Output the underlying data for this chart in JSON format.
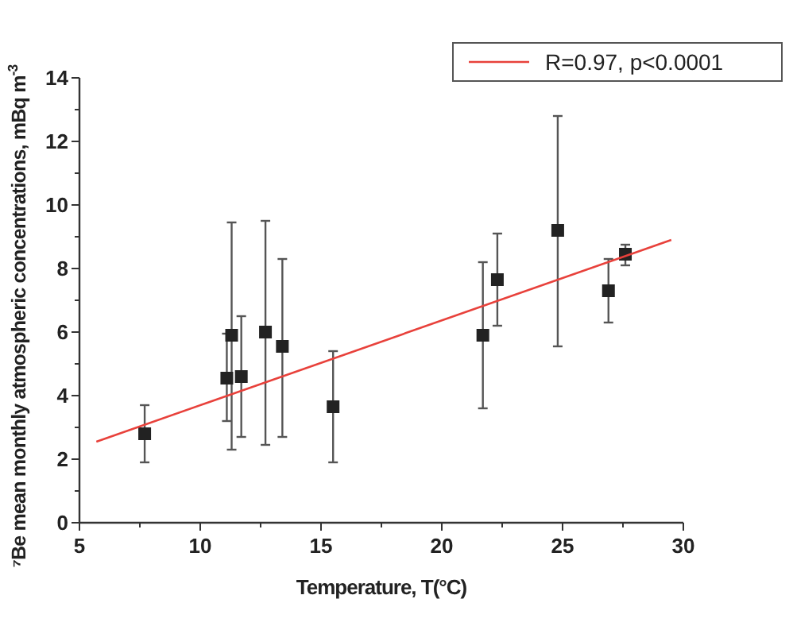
{
  "chart_data": {
    "type": "scatter",
    "xlabel": "Temperature, T(°C)",
    "ylabel": "⁷Be mean monthly atmospheric concentrations, mBq m$^{-3}$",
    "xlim": [
      5,
      30
    ],
    "ylim": [
      0,
      14
    ],
    "xticks": [
      5,
      {
        "value": 7.5,
        "label": null
      },
      10,
      {
        "value": 12.5,
        "label": null
      },
      15,
      {
        "value": 17.5,
        "label": null
      },
      20,
      {
        "value": 22.5,
        "label": null
      },
      25,
      {
        "value": 27.5,
        "label": null
      },
      30
    ],
    "yticks": [
      0,
      {
        "value": 1,
        "label": null
      },
      2,
      {
        "value": 3,
        "label": null
      },
      4,
      {
        "value": 5,
        "label": null
      },
      6,
      {
        "value": 7,
        "label": null
      },
      8,
      {
        "value": 9,
        "label": null
      },
      10,
      {
        "value": 11,
        "label": null
      },
      12,
      {
        "value": 13,
        "label": null
      },
      14
    ],
    "legend": "top right",
    "grid": false,
    "marker": "square",
    "series": [
      {
        "color": "#222222",
        "x": [
          7.7,
          11.1,
          11.3,
          11.7,
          12.7,
          13.4,
          15.5,
          21.7,
          22.3,
          24.8,
          26.9,
          27.6
        ],
        "values": [
          2.8,
          4.55,
          5.9,
          4.6,
          6.0,
          5.55,
          3.65,
          5.9,
          7.65,
          9.2,
          7.3,
          8.45
        ],
        "errors": [
          [
            1.9,
            3.7
          ],
          [
            3.2,
            5.95
          ],
          [
            2.3,
            9.45
          ],
          [
            2.7,
            6.5
          ],
          [
            2.45,
            9.5
          ],
          [
            2.7,
            8.3
          ],
          [
            1.9,
            5.4
          ],
          [
            3.6,
            8.2
          ],
          [
            6.2,
            9.1
          ],
          [
            5.55,
            12.8
          ],
          [
            6.3,
            8.3
          ],
          [
            8.1,
            8.75
          ]
        ]
      },
      {
        "type": "line",
        "name": "R=0.97, p<0.0001",
        "color": "#e8413b",
        "x": [
          5.7,
          29.5
        ],
        "values": [
          2.55,
          8.9
        ],
        "marker": "none",
        "line_style": "solid"
      }
    ]
  }
}
